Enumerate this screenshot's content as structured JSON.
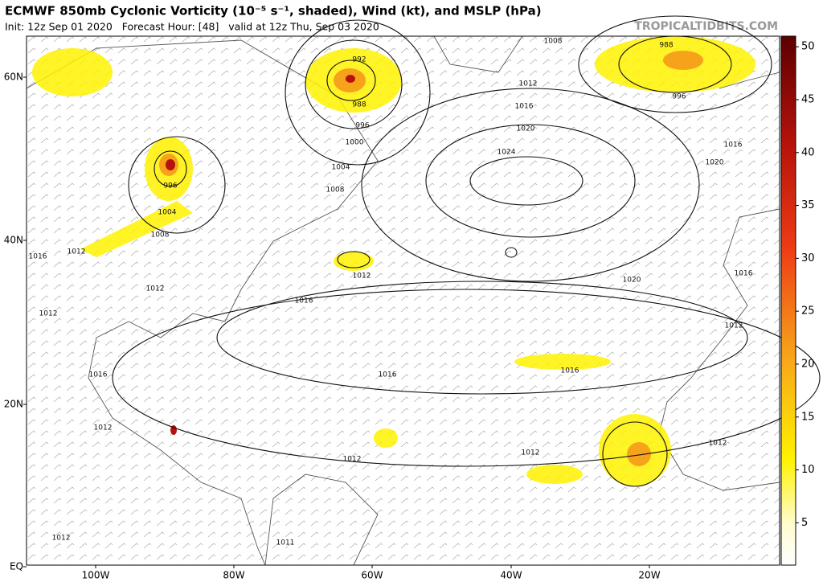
{
  "header": {
    "title": "ECMWF 850mb Cyclonic Vorticity (10⁻⁵ s⁻¹, shaded), Wind (kt), and MSLP (hPa)",
    "subtitle": "Init: 12z Sep 01 2020   Forecast Hour: [48]   valid at 12z Thu, Sep 03 2020",
    "site": "TROPICALTIDBITS.COM"
  },
  "map": {
    "lat_labels": [
      "60N",
      "40N",
      "20N",
      "EQ"
    ],
    "lon_labels": [
      "100W",
      "80W",
      "60W",
      "40W",
      "20W"
    ],
    "isobar_labels": [
      1008,
      992,
      988,
      996,
      1000,
      1004,
      1008,
      988,
      996,
      1012,
      1016,
      1020,
      1024,
      1016,
      1020,
      996,
      1004,
      1008,
      1012,
      1016,
      1012,
      1012,
      1012,
      1016,
      1020,
      1016,
      1012,
      1016,
      1016,
      1016,
      1012,
      1012,
      1012,
      1012,
      1012,
      1011
    ]
  },
  "colorbar": {
    "range": [
      1,
      51
    ],
    "ticks": [
      5,
      10,
      15,
      20,
      25,
      30,
      35,
      40,
      45,
      50
    ]
  }
}
